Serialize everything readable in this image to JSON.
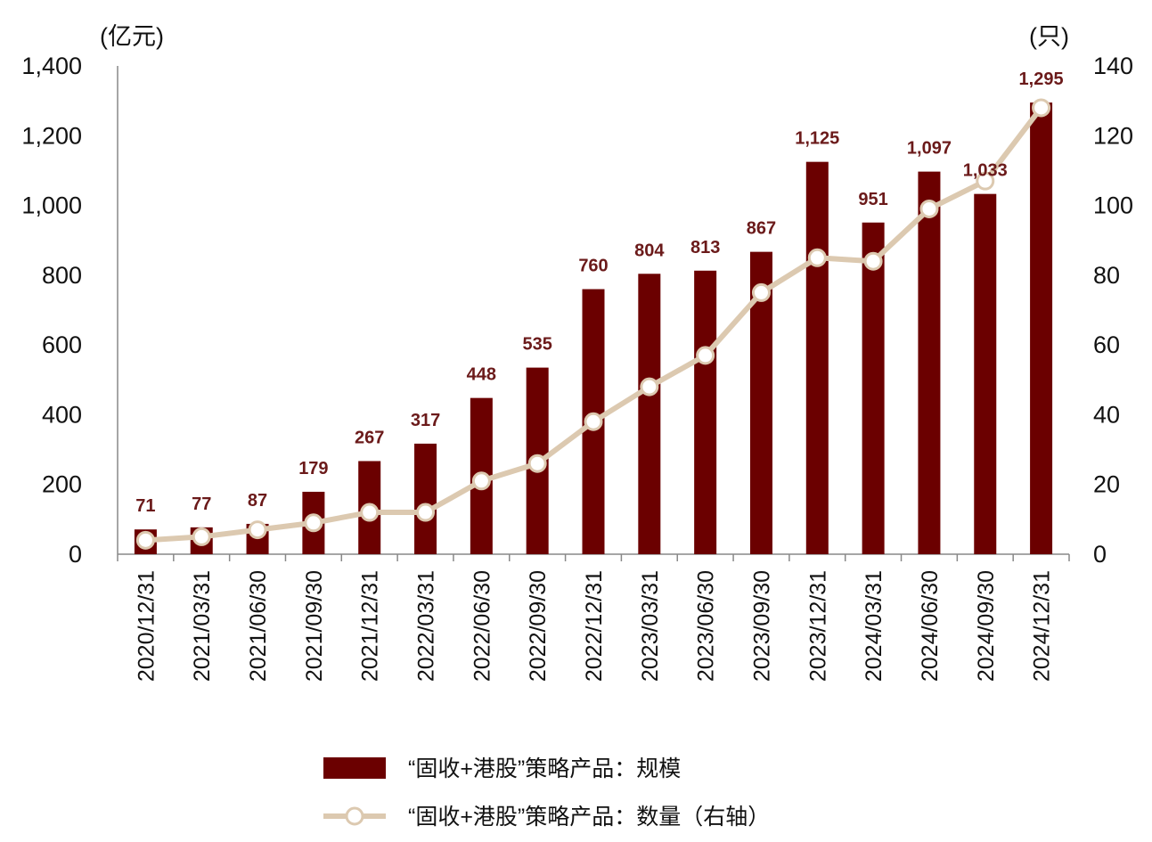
{
  "chart_data": {
    "type": "bar",
    "left_unit": "(亿元)",
    "right_unit": "(只)",
    "categories": [
      "2020/12/31",
      "2021/03/31",
      "2021/06/30",
      "2021/09/30",
      "2021/12/31",
      "2022/03/31",
      "2022/06/30",
      "2022/09/30",
      "2022/12/31",
      "2023/03/31",
      "2023/06/30",
      "2023/09/30",
      "2023/12/31",
      "2024/03/31",
      "2024/06/30",
      "2024/09/30",
      "2024/12/31"
    ],
    "left_axis": {
      "ylim": [
        0,
        1400
      ],
      "ticks": [
        "0",
        "200",
        "400",
        "600",
        "800",
        "1,000",
        "1,200",
        "1,400"
      ],
      "tick_values": [
        0,
        200,
        400,
        600,
        800,
        1000,
        1200,
        1400
      ]
    },
    "right_axis": {
      "ylim": [
        0,
        140
      ],
      "ticks": [
        "0",
        "20",
        "40",
        "60",
        "80",
        "100",
        "120",
        "140"
      ],
      "tick_values": [
        0,
        20,
        40,
        60,
        80,
        100,
        120,
        140
      ]
    },
    "series": [
      {
        "name": "“固收+港股”策略产品：规模",
        "type": "bar",
        "axis": "left",
        "color": "#6b0000",
        "values": [
          71,
          77,
          87,
          179,
          267,
          317,
          448,
          535,
          760,
          804,
          813,
          867,
          1125,
          951,
          1097,
          1033,
          1295
        ],
        "labels": [
          "71",
          "77",
          "87",
          "179",
          "267",
          "317",
          "448",
          "535",
          "760",
          "804",
          "813",
          "867",
          "1,125",
          "951",
          "1,097",
          "1,033",
          "1,295"
        ]
      },
      {
        "name": "“固收+港股”策略产品：数量（右轴）",
        "type": "line",
        "axis": "right",
        "color": "#dcc9b0",
        "values": [
          4,
          5,
          7,
          9,
          12,
          12,
          21,
          26,
          38,
          48,
          57,
          75,
          85,
          84,
          99,
          107,
          128
        ]
      }
    ],
    "legend_position": "bottom"
  }
}
